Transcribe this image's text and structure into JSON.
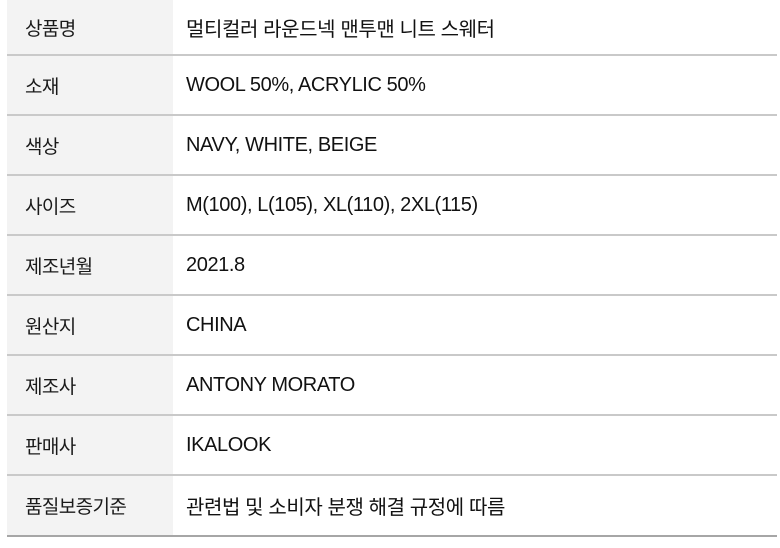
{
  "product_info_table": {
    "rows": [
      {
        "label": "상품명",
        "value": "멀티컬러 라운드넥 맨투맨 니트 스웨터"
      },
      {
        "label": "소재",
        "value": "WOOL 50%,  ACRYLIC 50%"
      },
      {
        "label": "색상",
        "value": "NAVY, WHITE, BEIGE"
      },
      {
        "label": "사이즈",
        "value": "M(100), L(105), XL(110), 2XL(115)"
      },
      {
        "label": "제조년월",
        "value": "2021.8"
      },
      {
        "label": "원산지",
        "value": "CHINA"
      },
      {
        "label": "제조사",
        "value": "ANTONY MORATO"
      },
      {
        "label": "판매사",
        "value": "IKALOOK"
      },
      {
        "label": "품질보증기준",
        "value": "관련법 및 소비자 분쟁 해결 규정에 따름"
      }
    ],
    "colors": {
      "label_cell_background": "#f3f3f3",
      "row_divider": "#c9c9c9",
      "bottom_rule": "#a6a6a6",
      "text": "#1a1a1a",
      "page_background": "#ffffff"
    }
  }
}
